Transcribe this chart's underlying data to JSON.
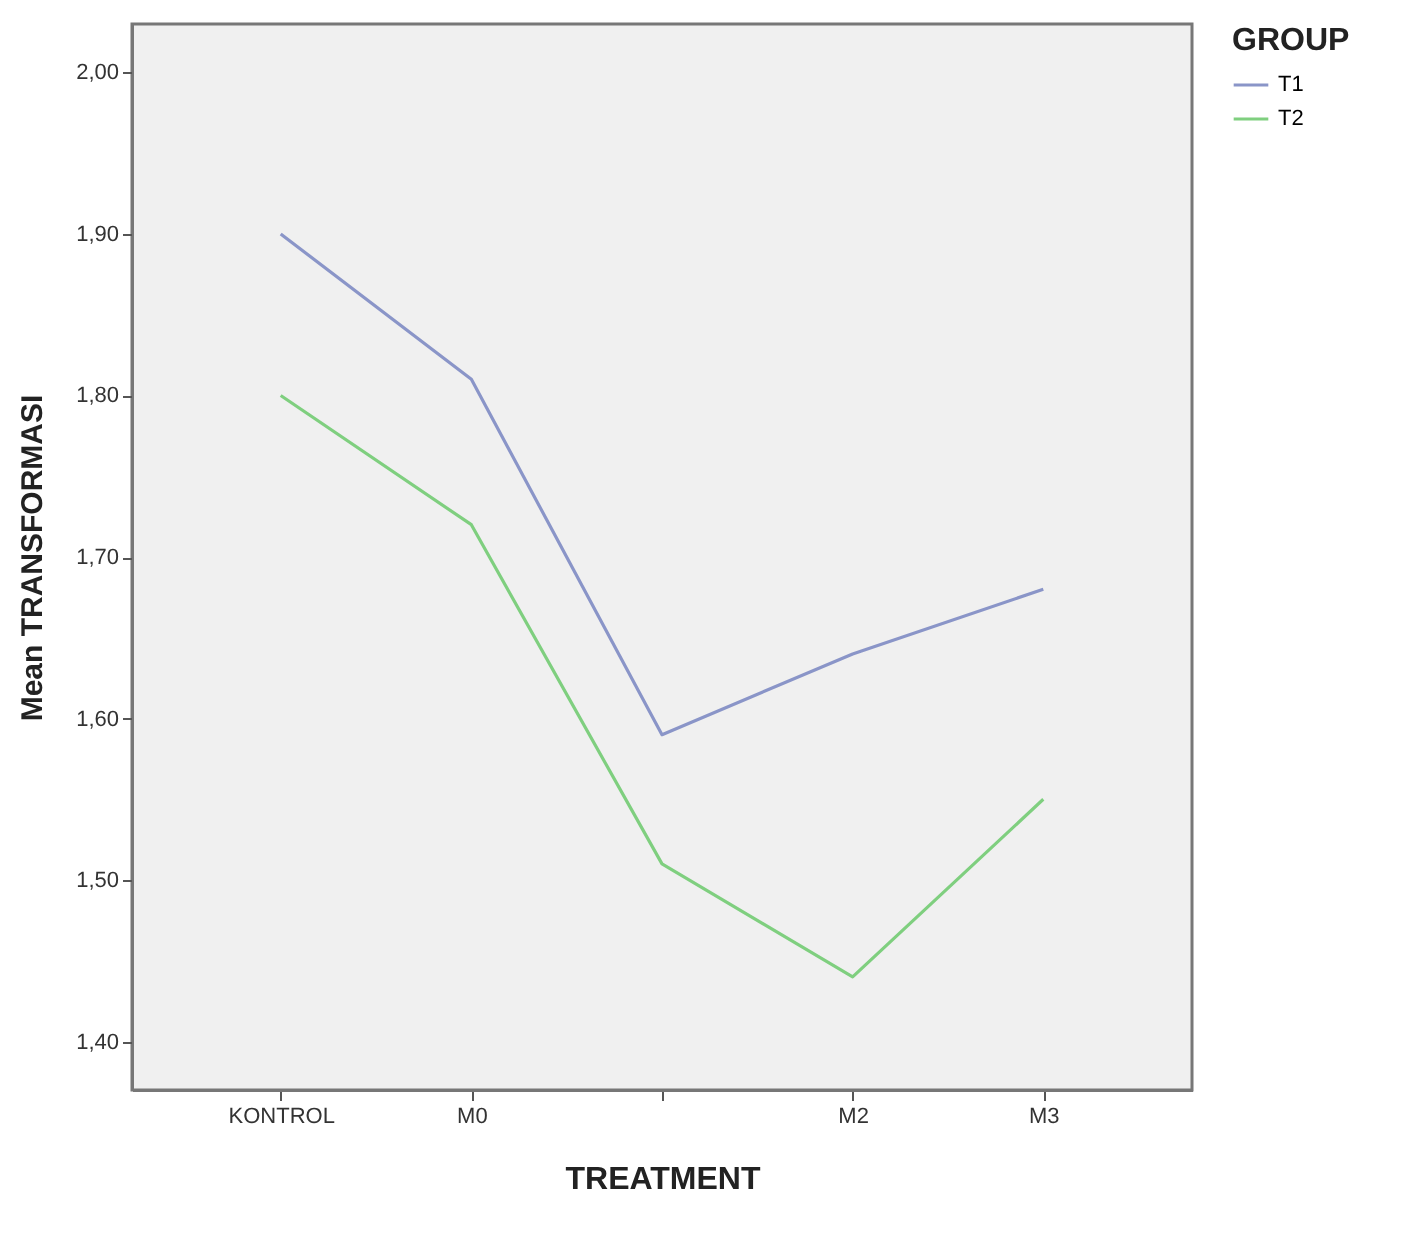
{
  "chart_data": {
    "type": "line",
    "xlabel": "TREATMENT",
    "ylabel": "Mean TRANSFORMASI",
    "legend_title": "GROUP",
    "categories": [
      "KONTROL",
      "M0",
      null,
      "M2",
      "M3"
    ],
    "series": [
      {
        "name": "T1",
        "color": "#8a95c8",
        "values": [
          1.9,
          1.81,
          1.59,
          1.64,
          1.68
        ]
      },
      {
        "name": "T2",
        "color": "#7fcf7f",
        "values": [
          1.8,
          1.72,
          1.51,
          1.44,
          1.55
        ]
      }
    ],
    "ylim": [
      1.37,
      2.03
    ],
    "yticks": [
      {
        "value": 1.4,
        "label": "1,40"
      },
      {
        "value": 1.5,
        "label": "1,50"
      },
      {
        "value": 1.6,
        "label": "1,60"
      },
      {
        "value": 1.7,
        "label": "1,70"
      },
      {
        "value": 1.8,
        "label": "1,80"
      },
      {
        "value": 1.9,
        "label": "1,90"
      },
      {
        "value": 2.0,
        "label": "2,00"
      }
    ],
    "grid": false,
    "legend": "top right",
    "marker": "none",
    "line_style": "solid"
  }
}
